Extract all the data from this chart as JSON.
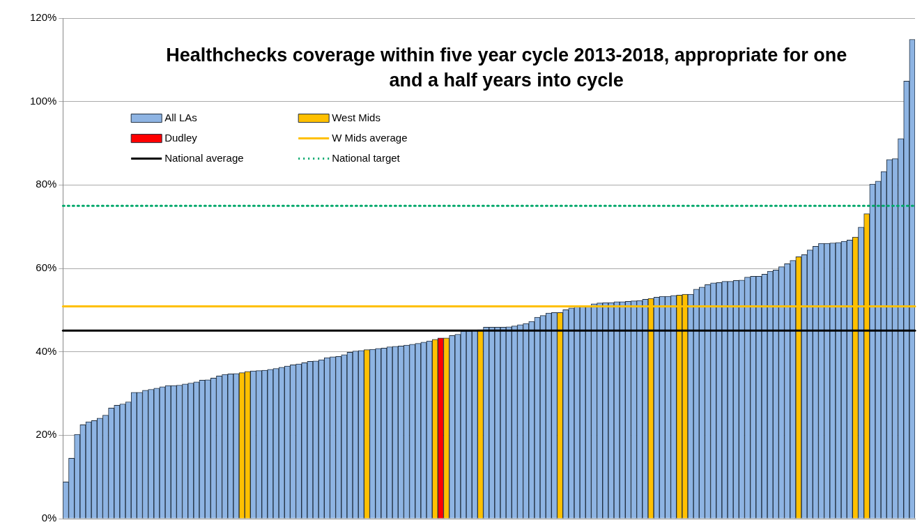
{
  "chart_data": {
    "type": "bar",
    "title": "Healthchecks coverage within five year cycle 2013-2018, appropriate for one and a half years into cycle",
    "categories": [
      null,
      null,
      null,
      null,
      null,
      null,
      null,
      null,
      null,
      null,
      null,
      null,
      null,
      null,
      null,
      null,
      null,
      null,
      null,
      null,
      null,
      null,
      null,
      null,
      null,
      null,
      null,
      null,
      null,
      null,
      null,
      null,
      null,
      null,
      null,
      null,
      null,
      null,
      null,
      null,
      null,
      null,
      null,
      null,
      null,
      null,
      null,
      null,
      null,
      null,
      null,
      null,
      null,
      null,
      null,
      null,
      null,
      null,
      null,
      null,
      null,
      null,
      null,
      null,
      null,
      null,
      null,
      null,
      null,
      null,
      null,
      null,
      null,
      null,
      null,
      null,
      null,
      null,
      null,
      null,
      null,
      null,
      null,
      null,
      null,
      null,
      null,
      null,
      null,
      null,
      null,
      null,
      null,
      null,
      null,
      null,
      null,
      null,
      null,
      null,
      null,
      null,
      null,
      null,
      null,
      null,
      null,
      null,
      null,
      null,
      null,
      null,
      null,
      null,
      null,
      null,
      null,
      null,
      null,
      null,
      null,
      null,
      null,
      null,
      null,
      null,
      null,
      null,
      null,
      null,
      null,
      null,
      null,
      null,
      null,
      null,
      null,
      null,
      null,
      null,
      null,
      null,
      null,
      null,
      null,
      null,
      null,
      null,
      null,
      null
    ],
    "stacked": true,
    "series": [
      {
        "name": "All LAs",
        "color": "#8eb4e3",
        "values": [
          8.8,
          14.5,
          20.2,
          22.5,
          23.2,
          23.5,
          24.1,
          24.8,
          26.5,
          27.2,
          27.5,
          28.0,
          30.3,
          30.3,
          30.8,
          31.0,
          31.3,
          31.6,
          31.9,
          31.9,
          32.0,
          32.3,
          32.5,
          32.8,
          33.2,
          33.3,
          33.7,
          34.2,
          34.6,
          34.7,
          34.8,
          null,
          null,
          35.4,
          35.5,
          35.6,
          35.8,
          36.0,
          36.3,
          36.6,
          36.9,
          37.1,
          37.4,
          37.7,
          37.8,
          38.1,
          38.6,
          38.8,
          38.9,
          39.3,
          39.9,
          40.2,
          40.3,
          null,
          40.6,
          40.8,
          40.9,
          41.2,
          41.3,
          41.4,
          41.6,
          41.8,
          42.0,
          42.3,
          42.6,
          null,
          null,
          null,
          43.9,
          44.2,
          45.0,
          45.0,
          45.1,
          null,
          45.9,
          45.9,
          45.9,
          45.9,
          46.0,
          46.2,
          46.5,
          46.8,
          47.3,
          48.3,
          48.7,
          49.3,
          49.4,
          null,
          50.1,
          50.5,
          50.9,
          51.0,
          51.0,
          51.5,
          51.7,
          51.8,
          51.8,
          52.0,
          52.0,
          52.1,
          52.2,
          52.3,
          52.6,
          null,
          53.1,
          53.3,
          53.3,
          53.5,
          null,
          null,
          53.8,
          55.0,
          55.5,
          56.1,
          56.5,
          56.6,
          56.9,
          56.9,
          57.1,
          57.2,
          57.9,
          58.1,
          58.1,
          58.6,
          59.3,
          59.6,
          60.4,
          61.1,
          61.9,
          null,
          63.3,
          64.4,
          65.3,
          66.0,
          66.0,
          66.1,
          66.2,
          66.5,
          66.8,
          null,
          69.9,
          null,
          80.2,
          80.9,
          83.2,
          86.1,
          86.3,
          91.1,
          104.9,
          114.9
        ]
      },
      {
        "name": "West Mids",
        "color": "#ffc000",
        "values": [
          null,
          null,
          null,
          null,
          null,
          null,
          null,
          null,
          null,
          null,
          null,
          null,
          null,
          null,
          null,
          null,
          null,
          null,
          null,
          null,
          null,
          null,
          null,
          null,
          null,
          null,
          null,
          null,
          null,
          null,
          null,
          35.0,
          35.3,
          null,
          null,
          null,
          null,
          null,
          null,
          null,
          null,
          null,
          null,
          null,
          null,
          null,
          null,
          null,
          null,
          null,
          null,
          null,
          null,
          40.5,
          null,
          null,
          null,
          null,
          null,
          null,
          null,
          null,
          null,
          null,
          null,
          43.0,
          null,
          43.3,
          null,
          null,
          null,
          null,
          null,
          45.3,
          null,
          null,
          null,
          null,
          null,
          null,
          null,
          null,
          null,
          null,
          null,
          null,
          null,
          49.4,
          null,
          null,
          null,
          null,
          null,
          null,
          null,
          null,
          null,
          null,
          null,
          null,
          null,
          null,
          null,
          52.8,
          null,
          null,
          null,
          null,
          53.6,
          53.8,
          null,
          null,
          null,
          null,
          null,
          null,
          null,
          null,
          null,
          null,
          null,
          null,
          null,
          null,
          null,
          null,
          null,
          null,
          null,
          62.8,
          null,
          null,
          null,
          null,
          null,
          null,
          null,
          null,
          null,
          67.5,
          null,
          73.1,
          null,
          null,
          null,
          null,
          null,
          null,
          null,
          null
        ]
      },
      {
        "name": "Dudley",
        "color": "#ff0000",
        "values": [
          null,
          null,
          null,
          null,
          null,
          null,
          null,
          null,
          null,
          null,
          null,
          null,
          null,
          null,
          null,
          null,
          null,
          null,
          null,
          null,
          null,
          null,
          null,
          null,
          null,
          null,
          null,
          null,
          null,
          null,
          null,
          null,
          null,
          null,
          null,
          null,
          null,
          null,
          null,
          null,
          null,
          null,
          null,
          null,
          null,
          null,
          null,
          null,
          null,
          null,
          null,
          null,
          null,
          null,
          null,
          null,
          null,
          null,
          null,
          null,
          null,
          null,
          null,
          null,
          null,
          null,
          43.3,
          null,
          null,
          null,
          null,
          null,
          null,
          null,
          null,
          null,
          null,
          null,
          null,
          null,
          null,
          null,
          null,
          null,
          null,
          null,
          null,
          null,
          null,
          null,
          null,
          null,
          null,
          null,
          null,
          null,
          null,
          null,
          null,
          null,
          null,
          null,
          null,
          null,
          null,
          null,
          null,
          null,
          null,
          null,
          null,
          null,
          null,
          null,
          null,
          null,
          null,
          null,
          null,
          null,
          null,
          null,
          null,
          null,
          null,
          null,
          null,
          null,
          null,
          null,
          null,
          null,
          null,
          null,
          null,
          null,
          null,
          null,
          null,
          null,
          null,
          null,
          null,
          null,
          null,
          null,
          null,
          null,
          null,
          null
        ]
      }
    ],
    "ref_lines": [
      {
        "axis": "y",
        "value": 50.9,
        "label": "W Mids average",
        "color": "#ffc000",
        "line_style": "solid"
      },
      {
        "axis": "y",
        "value": 45.1,
        "label": "National average",
        "color": "#000000",
        "line_style": "solid"
      },
      {
        "axis": "y",
        "value": 75,
        "label": "National target",
        "color": "#00a86b",
        "line_style": "dotted"
      }
    ],
    "ylim": [
      0,
      120
    ],
    "yticks": [
      {
        "value": 0,
        "label": "0%"
      },
      {
        "value": 20,
        "label": "20%"
      },
      {
        "value": 40,
        "label": "40%"
      },
      {
        "value": 60,
        "label": "60%"
      },
      {
        "value": 80,
        "label": "80%"
      },
      {
        "value": 100,
        "label": "100%"
      },
      {
        "value": 120,
        "label": "120%"
      }
    ],
    "grid": "y",
    "legend": "top left"
  }
}
